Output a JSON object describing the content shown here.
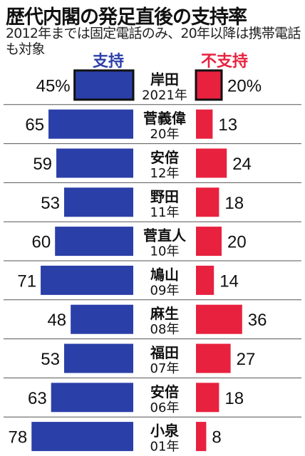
{
  "header": {
    "title": "歴代内閣の発足直後の支持率",
    "subtitle": "2012年までは固定電話のみ、20年以降は携帯電話も対象"
  },
  "chart_data": {
    "type": "bar",
    "title": "歴代内閣の発足直後の支持率",
    "subtitle": "2012年までは固定電話のみ、20年以降は携帯電話も対象",
    "legend": {
      "support": "支持",
      "oppose": "不支持"
    },
    "categories": [
      {
        "name": "岸田",
        "year": "2021年"
      },
      {
        "name": "菅義偉",
        "year": "20年"
      },
      {
        "name": "安倍",
        "year": "12年"
      },
      {
        "name": "野田",
        "year": "11年"
      },
      {
        "name": "菅直人",
        "year": "10年"
      },
      {
        "name": "鳩山",
        "year": "09年"
      },
      {
        "name": "麻生",
        "year": "08年"
      },
      {
        "name": "福田",
        "year": "07年"
      },
      {
        "name": "安倍",
        "year": "06年"
      },
      {
        "name": "小泉",
        "year": "01年"
      }
    ],
    "series": [
      {
        "name": "支持",
        "values": [
          45,
          65,
          59,
          53,
          60,
          71,
          48,
          53,
          63,
          78
        ],
        "labels": [
          "45%",
          "65",
          "59",
          "53",
          "60",
          "71",
          "48",
          "53",
          "63",
          "78"
        ]
      },
      {
        "name": "不支持",
        "values": [
          20,
          13,
          24,
          18,
          20,
          14,
          36,
          27,
          18,
          8
        ],
        "labels": [
          "20%",
          "13",
          "24",
          "18",
          "20",
          "14",
          "36",
          "27",
          "18",
          "8"
        ]
      }
    ],
    "highlight_first_row": true,
    "colors": {
      "support": "#2b3fa8",
      "oppose": "#e8213f",
      "support_highlight_border": "#111111",
      "divider": "#555555"
    }
  }
}
